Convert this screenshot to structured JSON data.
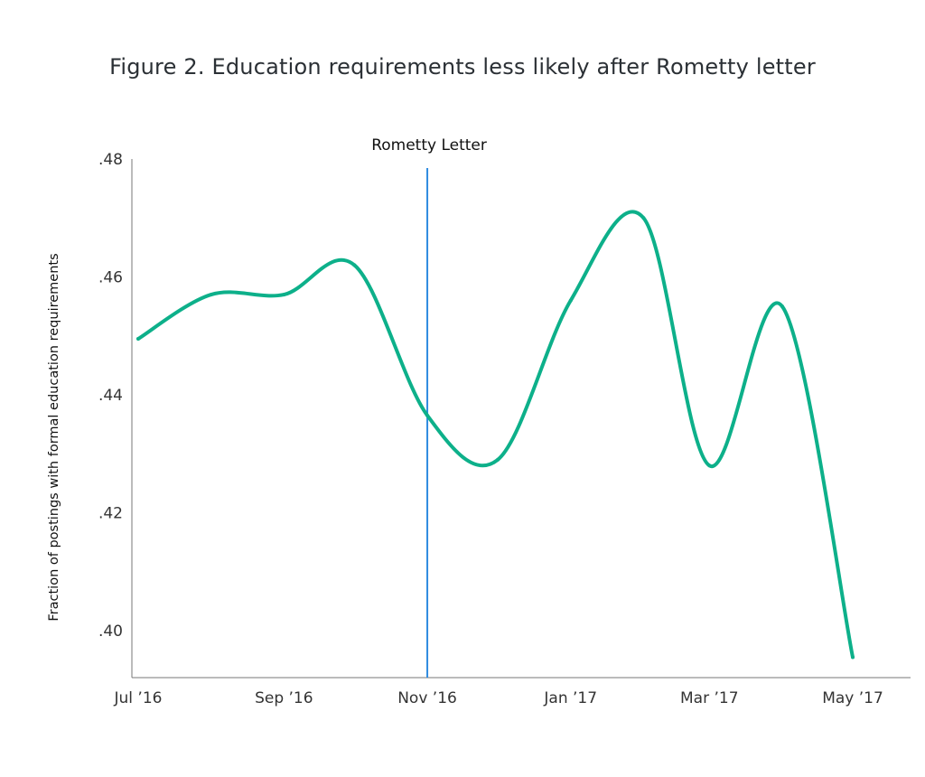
{
  "chart_data": {
    "type": "line",
    "title": "Figure 2. Education requirements less likely after Rometty letter",
    "xlabel": "",
    "ylabel": "Fraction of postings with formal education requirements",
    "ylim": [
      0.392,
      0.48
    ],
    "yticks": [
      ".48",
      ".46",
      ".44",
      ".42",
      ".40"
    ],
    "ytick_values": [
      0.48,
      0.46,
      0.44,
      0.42,
      0.4
    ],
    "xticks": [
      "Jul ’16",
      "Sep ’16",
      "Nov ’16",
      "Jan ’17",
      "Mar ’17",
      "May ’17"
    ],
    "xtick_dates": [
      "2016-07-01",
      "2016-09-01",
      "2016-11-01",
      "2017-01-01",
      "2017-03-01",
      "2017-05-01"
    ],
    "grid": false,
    "series": [
      {
        "name": "Fraction of postings",
        "color": "#0db08a",
        "x": [
          "2016-07-01",
          "2016-08-01",
          "2016-09-01",
          "2016-10-01",
          "2016-11-01",
          "2016-12-01",
          "2017-01-01",
          "2017-02-01",
          "2017-03-01",
          "2017-04-01",
          "2017-05-01"
        ],
        "values": [
          0.4495,
          0.457,
          0.457,
          0.462,
          0.4365,
          0.429,
          0.456,
          0.47,
          0.428,
          0.455,
          0.3955
        ]
      }
    ],
    "annotations": [
      {
        "label": "Rometty Letter",
        "date": "2016-11-01",
        "color": "#2f8be0"
      }
    ]
  }
}
